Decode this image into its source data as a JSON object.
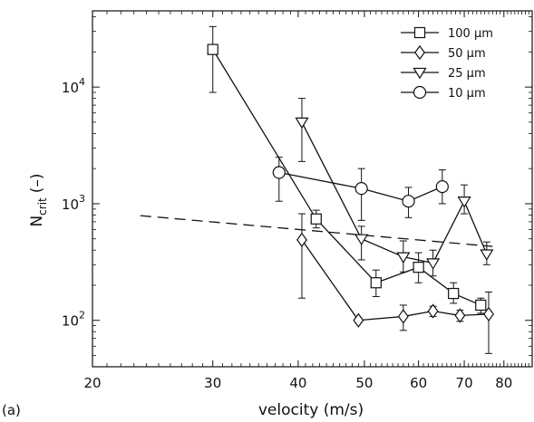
{
  "chart_data": {
    "type": "line",
    "panel_label": "(a)",
    "xlabel": "velocity (m/s)",
    "ylabel_main": "N",
    "ylabel_sub": "crit",
    "ylabel_unit": "(–)",
    "x_scale": "log",
    "y_scale": "log",
    "xlim": [
      20,
      88
    ],
    "ylim": [
      40,
      45000
    ],
    "x_ticks": [
      {
        "value": 20,
        "label": "20"
      },
      {
        "value": 30,
        "label": "30"
      },
      {
        "value": 40,
        "label": "40"
      },
      {
        "value": 50,
        "label": "50"
      },
      {
        "value": 60,
        "label": "60"
      },
      {
        "value": 70,
        "label": "70"
      },
      {
        "value": 80,
        "label": "80"
      }
    ],
    "y_ticks": [
      {
        "value": 100,
        "base": "10",
        "exp": "2"
      },
      {
        "value": 1000,
        "base": "10",
        "exp": "3"
      },
      {
        "value": 10000,
        "base": "10",
        "exp": "4"
      }
    ],
    "legend_position": "top-right",
    "series": [
      {
        "name": "100 μm",
        "marker": "square",
        "points": [
          {
            "x": 30,
            "y": 21000,
            "lo": 9000,
            "hi": 33000
          },
          {
            "x": 42.5,
            "y": 740,
            "lo": 620,
            "hi": 880
          },
          {
            "x": 52,
            "y": 210,
            "lo": 160,
            "hi": 270
          },
          {
            "x": 60,
            "y": 285,
            "lo": 210,
            "hi": 380
          },
          {
            "x": 67.5,
            "y": 170,
            "lo": 140,
            "hi": 210
          },
          {
            "x": 74,
            "y": 135,
            "lo": 115,
            "hi": 155
          }
        ]
      },
      {
        "name": "50 μm",
        "marker": "diamond",
        "points": [
          {
            "x": 40.5,
            "y": 490,
            "lo": 155,
            "hi": 820
          },
          {
            "x": 49,
            "y": 100,
            "lo": 95,
            "hi": 105
          },
          {
            "x": 57,
            "y": 108,
            "lo": 82,
            "hi": 135
          },
          {
            "x": 63,
            "y": 120,
            "lo": 108,
            "hi": 132
          },
          {
            "x": 69,
            "y": 110,
            "lo": 98,
            "hi": 122
          },
          {
            "x": 76,
            "y": 113,
            "lo": 52,
            "hi": 175
          }
        ]
      },
      {
        "name": "25 μm",
        "marker": "triangle-down",
        "points": [
          {
            "x": 40.5,
            "y": 5000,
            "lo": 2300,
            "hi": 8000
          },
          {
            "x": 49.5,
            "y": 500,
            "lo": 330,
            "hi": 640
          },
          {
            "x": 57,
            "y": 350,
            "lo": 260,
            "hi": 480
          },
          {
            "x": 63,
            "y": 310,
            "lo": 240,
            "hi": 400
          },
          {
            "x": 70,
            "y": 1050,
            "lo": 820,
            "hi": 1450
          },
          {
            "x": 75.5,
            "y": 370,
            "lo": 300,
            "hi": 470
          }
        ]
      },
      {
        "name": "10 μm",
        "marker": "circle",
        "points": [
          {
            "x": 37.5,
            "y": 1850,
            "lo": 1050,
            "hi": 2500
          },
          {
            "x": 49.5,
            "y": 1350,
            "lo": 720,
            "hi": 2000
          },
          {
            "x": 58,
            "y": 1050,
            "lo": 760,
            "hi": 1380
          },
          {
            "x": 65,
            "y": 1400,
            "lo": 1000,
            "hi": 1950
          }
        ]
      }
    ],
    "reference_line": {
      "style": "dashed",
      "points": [
        {
          "x": 23.5,
          "y": 790
        },
        {
          "x": 77,
          "y": 430
        }
      ]
    }
  }
}
